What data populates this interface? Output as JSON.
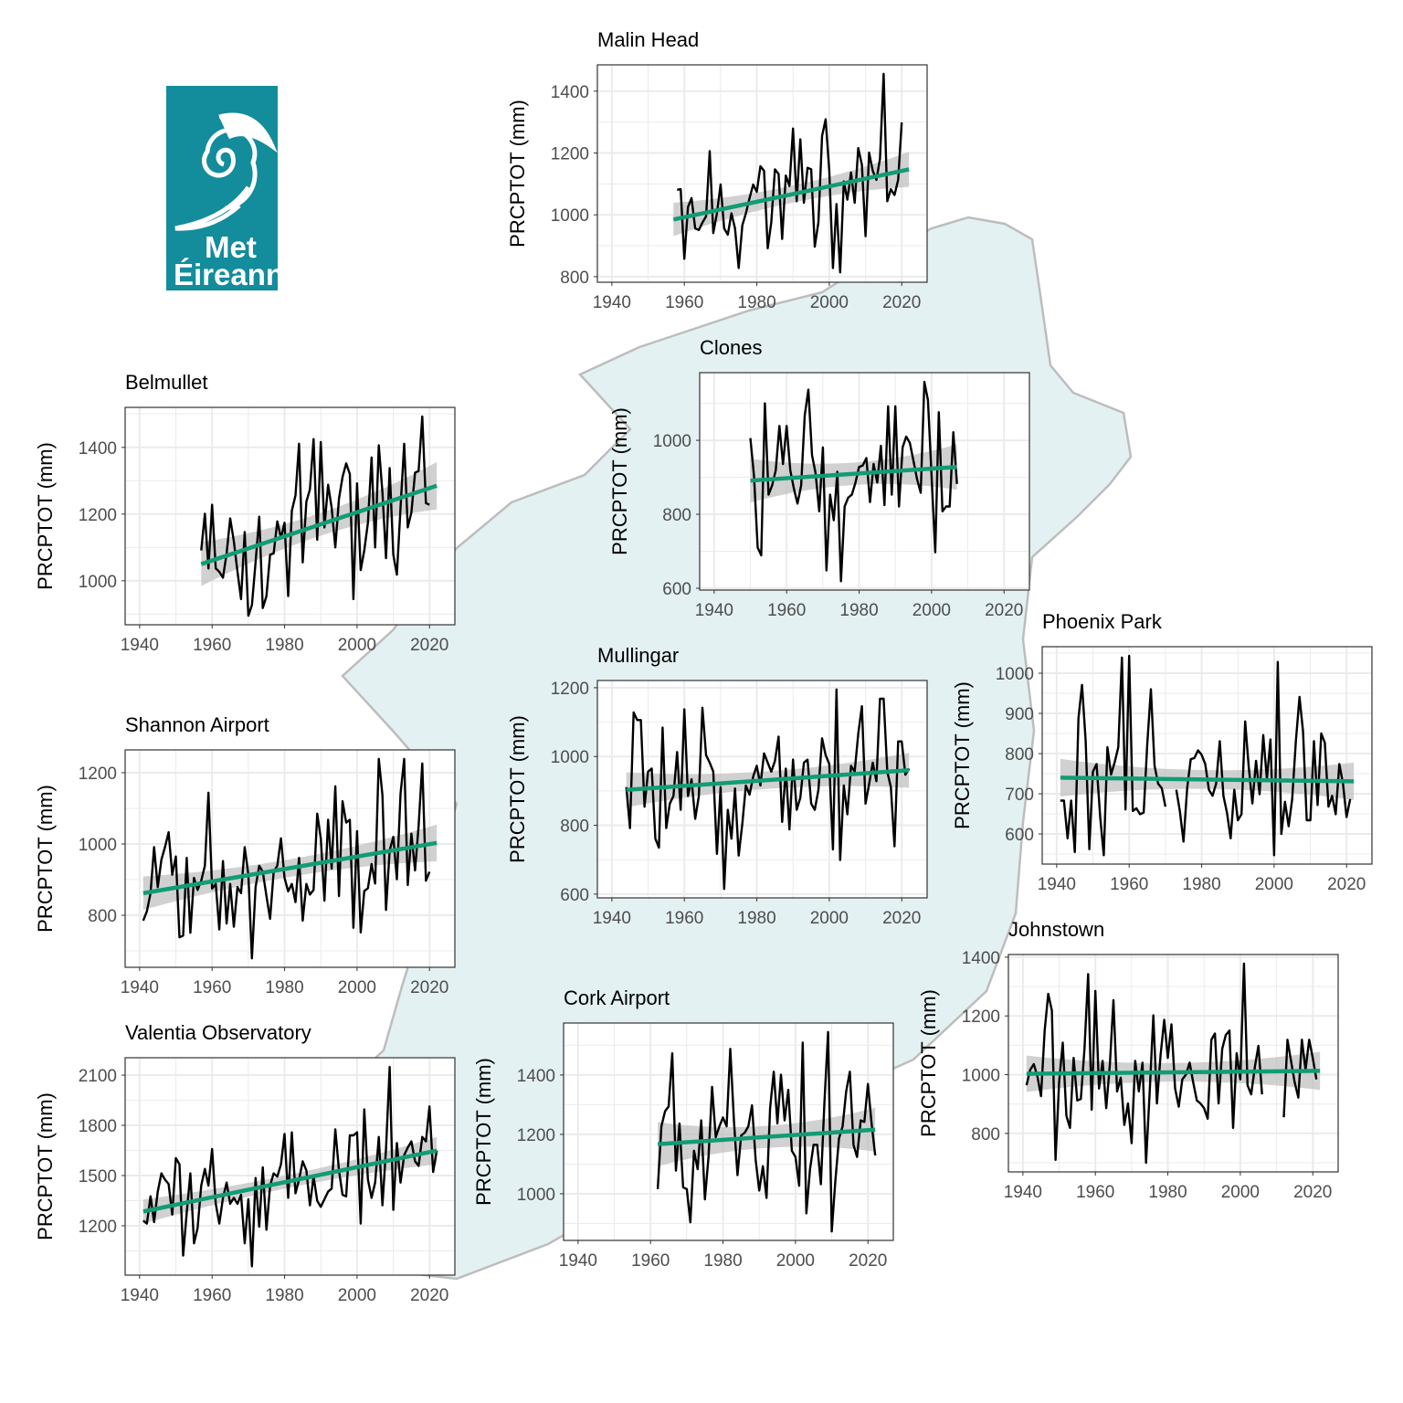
{
  "logo": {
    "line1": "Met",
    "line2": "Éireann",
    "color": "#138c9b"
  },
  "colors": {
    "series": "#000000",
    "trend": "#119c74",
    "ribbon": "#bdbdbd",
    "land": "#e4f1f3",
    "coast": "#bdbdbd",
    "grid": "#ebebeb"
  },
  "chart_data": [
    {
      "type": "line",
      "title": "Malin Head",
      "xlabel": "",
      "ylabel": "PRCPTOT (mm)",
      "xlim": [
        1936,
        2027
      ],
      "ylim": [
        782,
        1485
      ],
      "xticks": [
        1940,
        1960,
        1980,
        2000,
        2020
      ],
      "yticks": [
        800,
        1000,
        1200,
        1400
      ],
      "grid": true,
      "series": [
        {
          "start_year": 1958,
          "values": [
            1081,
            1083,
            858,
            1025,
            1054,
            956,
            951,
            975,
            995,
            1206,
            941,
            1005,
            1098,
            956,
            936,
            1005,
            956,
            828,
            966,
            1005,
            1054,
            1098,
            1074,
            1157,
            1142,
            892,
            976,
            1147,
            1132,
            922,
            1127,
            1093,
            1279,
            1044,
            1244,
            1039,
            1152,
            1147,
            897,
            976,
            1255,
            1309,
            1142,
            828,
            1035,
            814,
            1108,
            1049,
            1137,
            1039,
            1216,
            1162,
            931,
            1201,
            1142,
            1113,
            1181,
            1456,
            1044,
            1083,
            1064,
            1113,
            1299
          ]
        }
      ],
      "trend": {
        "x": [
          1957,
          2022
        ],
        "y": [
          985,
          1147
        ],
        "ci_low": [
          931,
          1088
        ],
        "ci_high": [
          1039,
          1201
        ]
      }
    },
    {
      "type": "line",
      "title": "Clones",
      "xlabel": "",
      "ylabel": "PRCPTOT (mm)",
      "xlim": [
        1936,
        2027
      ],
      "ylim": [
        595,
        1183
      ],
      "xticks": [
        1940,
        1960,
        1980,
        2000,
        2020
      ],
      "yticks": [
        600,
        800,
        1000
      ],
      "grid": true,
      "series": [
        {
          "start_year": 1950,
          "values": [
            1006,
            903,
            710,
            689,
            1100,
            853,
            878,
            919,
            1039,
            936,
            1039,
            919,
            870,
            829,
            878,
            1067,
            1137,
            960,
            911,
            808,
            981,
            648,
            853,
            784,
            915,
            619,
            821,
            845,
            853,
            886,
            928,
            932,
            952,
            833,
            936,
            886,
            985,
            825,
            1092,
            853,
            1092,
            821,
            981,
            1010,
            993,
            944,
            895,
            858,
            1158,
            1109,
            903,
            697,
            1076,
            808,
            821,
            821,
            1022,
            882
          ]
        }
      ],
      "trend": {
        "x": [
          1950,
          2007
        ],
        "y": [
          891,
          928
        ],
        "ci_low": [
          829,
          866
        ],
        "ci_high": [
          948,
          989
        ]
      }
    },
    {
      "type": "line",
      "title": "Belmullet",
      "xlabel": "",
      "ylabel": "PRCPTOT (mm)",
      "xlim": [
        1936,
        2027
      ],
      "ylim": [
        868,
        1520
      ],
      "xticks": [
        1940,
        1960,
        1980,
        2000,
        2020
      ],
      "yticks": [
        1000,
        1200,
        1400
      ],
      "grid": true,
      "series": [
        {
          "start_year": 1957,
          "values": [
            1091,
            1201,
            1037,
            1228,
            1037,
            1027,
            1009,
            1082,
            1187,
            1119,
            1027,
            945,
            1146,
            895,
            927,
            1055,
            1192,
            918,
            954,
            1078,
            1082,
            1178,
            1128,
            1174,
            954,
            1210,
            1256,
            1411,
            1055,
            1237,
            1274,
            1425,
            1123,
            1416,
            1160,
            1288,
            1219,
            1100,
            1246,
            1311,
            1352,
            1320,
            945,
            1292,
            1032,
            1091,
            1174,
            1370,
            1100,
            1406,
            1265,
            1068,
            1338,
            1078,
            1018,
            1219,
            1411,
            1160,
            1205,
            1324,
            1329,
            1493,
            1233,
            1228
          ]
        }
      ],
      "trend": {
        "x": [
          1957,
          2022
        ],
        "y": [
          1050,
          1285
        ],
        "ci_low": [
          991,
          1205
        ],
        "ci_high": [
          1123,
          1347
        ]
      }
    },
    {
      "type": "line",
      "title": "Mullingar",
      "xlabel": "",
      "ylabel": "PRCPTOT (mm)",
      "xlim": [
        1936,
        2027
      ],
      "ylim": [
        589,
        1221
      ],
      "xticks": [
        1940,
        1960,
        1980,
        2000,
        2020
      ],
      "yticks": [
        600,
        800,
        1000,
        1200
      ],
      "grid": true,
      "series": [
        {
          "start_year": 1944,
          "values": [
            911,
            792,
            1128,
            1106,
            1106,
            854,
            956,
            965,
            761,
            735,
            1084,
            792,
            863,
            885,
            1013,
            845,
            1137,
            885,
            934,
            819,
            885,
            1142,
            1004,
            982,
            956,
            717,
            911,
            615,
            845,
            761,
            907,
            712,
            805,
            916,
            889,
            942,
            973,
            916,
            1009,
            982,
            956,
            987,
            1058,
            810,
            965,
            788,
            991,
            845,
            880,
            982,
            991,
            863,
            845,
            903,
            1053,
            1004,
            978,
            730,
            1195,
            699,
            916,
            832,
            973,
            956,
            1066,
            1146,
            863,
            920,
            982,
            928,
            1168,
            1168,
            956,
            911,
            739,
            1044,
            1044,
            947,
            965
          ]
        }
      ],
      "trend": {
        "x": [
          1944,
          2022
        ],
        "y": [
          903,
          960
        ],
        "ci_low": [
          854,
          907
        ],
        "ci_high": [
          956,
          1009
        ]
      }
    },
    {
      "type": "line",
      "title": "Phoenix Park",
      "xlabel": "",
      "ylabel": "PRCPTOT (mm)",
      "xlim": [
        1936,
        2027
      ],
      "ylim": [
        525,
        1066
      ],
      "xticks": [
        1940,
        1960,
        1980,
        2000,
        2020
      ],
      "yticks": [
        600,
        700,
        800,
        900,
        1000
      ],
      "grid": true,
      "series": [
        {
          "start_year": 1941,
          "values": [
            683,
            683,
            589,
            683,
            555,
            888,
            971,
            831,
            562,
            755,
            774,
            642,
            547,
            816,
            748,
            778,
            816,
            1039,
            661,
            1043,
            657,
            664,
            649,
            653,
            823,
            960,
            770,
            725,
            714,
            668,
            null,
            null,
            710,
            657,
            581,
            714,
            786,
            789,
            808,
            797,
            774,
            710,
            695,
            725,
            831,
            695,
            653,
            589,
            710,
            634,
            649,
            880,
            767,
            676,
            782,
            699,
            846,
            736,
            835,
            547,
            1028,
            600,
            680,
            619,
            687,
            831,
            941,
            854,
            634,
            634,
            831,
            672,
            850,
            827,
            668,
            695,
            649,
            774,
            725,
            642,
            687
          ]
        }
      ],
      "trend": {
        "x": [
          1941,
          2022
        ],
        "y": [
          740,
          731
        ],
        "ci_low": [
          695,
          683
        ],
        "ci_high": [
          789,
          776
        ]
      }
    },
    {
      "type": "line",
      "title": "Shannon Airport",
      "xlabel": "",
      "ylabel": "PRCPTOT (mm)",
      "xlim": [
        1936,
        2027
      ],
      "ylim": [
        654,
        1264
      ],
      "xticks": [
        1940,
        1960,
        1980,
        2000,
        2020
      ],
      "yticks": [
        800,
        1000,
        1200
      ],
      "grid": true,
      "series": [
        {
          "start_year": 1941,
          "values": [
            785,
            811,
            862,
            991,
            879,
            956,
            991,
            1033,
            914,
            965,
            738,
            743,
            961,
            751,
            905,
            871,
            897,
            939,
            1144,
            875,
            888,
            760,
            952,
            777,
            888,
            768,
            879,
            862,
            991,
            914,
            679,
            879,
            939,
            922,
            854,
            790,
            922,
            939,
            1016,
            905,
            867,
            888,
            837,
            961,
            785,
            888,
            858,
            871,
            1085,
            1016,
            841,
            1068,
            931,
            1162,
            854,
            1120,
            1060,
            1068,
            765,
            1036,
            752,
            868,
            876,
            944,
            889,
            1239,
            1137,
            815,
            982,
            1020,
            901,
            1141,
            1239,
            885,
            1029,
            926,
            1051,
            1226,
            897,
            922
          ]
        }
      ],
      "trend": {
        "x": [
          1941,
          2022
        ],
        "y": [
          862,
          1003
        ],
        "ci_low": [
          815,
          952
        ],
        "ci_high": [
          909,
          1055
        ]
      }
    },
    {
      "type": "line",
      "title": "Johnstown",
      "xlabel": "",
      "ylabel": "PRCPTOT (mm)",
      "xlim": [
        1936,
        2027
      ],
      "ylim": [
        669,
        1409
      ],
      "xticks": [
        1940,
        1960,
        1980,
        2000,
        2020
      ],
      "yticks": [
        800,
        1000,
        1200,
        1400
      ],
      "grid": true,
      "series": [
        {
          "start_year": 1941,
          "values": [
            964,
            1016,
            1036,
            995,
            927,
            1150,
            1275,
            1218,
            710,
            974,
            1109,
            860,
            819,
            1057,
            912,
            917,
            1088,
            1342,
            881,
            1285,
            953,
            1047,
            886,
            1036,
            1254,
            943,
            990,
            829,
            902,
            767,
            1047,
            943,
            1041,
            700,
            943,
            1202,
            902,
            1067,
            1187,
            1057,
            1171,
            953,
            891,
            984,
            1000,
            1041,
            974,
            912,
            902,
            886,
            850,
            1119,
            1140,
            902,
            1088,
            1135,
            1150,
            819,
            1073,
            984,
            1378,
            964,
            933,
            1026,
            1098,
            933,
            null,
            null,
            null,
            null,
            null,
            855,
            1119,
            1047,
            974,
            922,
            1119,
            1016,
            1119,
            1057,
            984
          ]
        }
      ],
      "trend": {
        "x": [
          1941,
          2022
        ],
        "y": [
          1003,
          1013
        ],
        "ci_low": [
          943,
          948
        ],
        "ci_high": [
          1067,
          1078
        ]
      }
    },
    {
      "type": "line",
      "title": "Cork Airport",
      "xlabel": "",
      "ylabel": "PRCPTOT (mm)",
      "xlim": [
        1936,
        2027
      ],
      "ylim": [
        843,
        1575
      ],
      "xticks": [
        1940,
        1960,
        1980,
        2000,
        2020
      ],
      "yticks": [
        1000,
        1200,
        1400
      ],
      "grid": true,
      "series": [
        {
          "start_year": 1962,
          "values": [
            1016,
            1227,
            1278,
            1294,
            1473,
            1078,
            1237,
            1022,
            1016,
            904,
            1145,
            1083,
            1247,
            981,
            1124,
            1360,
            1191,
            1227,
            1257,
            1227,
            1488,
            1247,
            1063,
            1196,
            1206,
            1227,
            1298,
            1114,
            1011,
            1093,
            986,
            1288,
            1411,
            1237,
            1401,
            1247,
            1350,
            1145,
            1124,
            1027,
            1509,
            934,
            1083,
            1165,
            1165,
            1032,
            1309,
            1545,
            873,
            1042,
            1186,
            1227,
            1345,
            1411,
            1165,
            1124,
            1247,
            1242,
            1370,
            1237,
            1129
          ]
        }
      ],
      "trend": {
        "x": [
          1962,
          2022
        ],
        "y": [
          1167,
          1216
        ],
        "ci_low": [
          1093,
          1145
        ],
        "ci_high": [
          1242,
          1293
        ]
      }
    },
    {
      "type": "line",
      "title": "Valentia Observatory",
      "xlabel": "",
      "ylabel": "PRCPTOT (mm)",
      "xlim": [
        1936,
        2027
      ],
      "ylim": [
        905,
        2204
      ],
      "xticks": [
        1940,
        1960,
        1980,
        2000,
        2020
      ],
      "yticks": [
        1200,
        1500,
        1800,
        2100
      ],
      "grid": true,
      "series": [
        {
          "start_year": 1941,
          "values": [
            1231,
            1213,
            1376,
            1222,
            1404,
            1513,
            1476,
            1449,
            1267,
            1604,
            1567,
            1022,
            1276,
            1513,
            1095,
            1185,
            1440,
            1540,
            1440,
            1658,
            1331,
            1213,
            1367,
            1458,
            1331,
            1367,
            1331,
            1385,
            1095,
            1358,
            958,
            1485,
            1195,
            1549,
            1176,
            1440,
            1513,
            1494,
            1567,
            1749,
            1367,
            1758,
            1394,
            1476,
            1585,
            1531,
            1322,
            1494,
            1349,
            1313,
            1358,
            1404,
            1422,
            1776,
            1531,
            1385,
            1376,
            1740,
            1740,
            1758,
            1213,
            1895,
            1476,
            1367,
            1458,
            1731,
            1322,
            1658,
            2149,
            1295,
            1694,
            1458,
            1622,
            1667,
            1704,
            1585,
            1558,
            1731,
            1704,
            1913,
            1522,
            1649
          ]
        }
      ],
      "trend": {
        "x": [
          1941,
          2022
        ],
        "y": [
          1285,
          1649
        ],
        "ci_low": [
          1222,
          1558
        ],
        "ci_high": [
          1367,
          1722
        ]
      }
    }
  ]
}
